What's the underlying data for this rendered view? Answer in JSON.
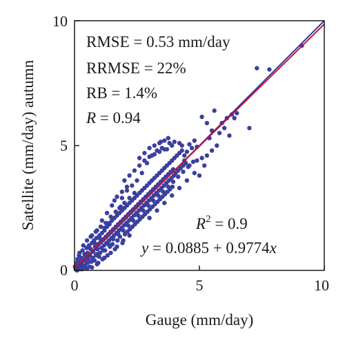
{
  "chart_data": {
    "type": "scatter",
    "xlabel": "Gauge (mm/day)",
    "ylabel": "Satellite (mm/day) autumn",
    "xlim": [
      0,
      10
    ],
    "ylim": [
      0,
      10
    ],
    "x_ticks": [
      "0",
      "5",
      "10"
    ],
    "y_ticks": [
      "0",
      "5",
      "10"
    ],
    "grid": false,
    "stats": {
      "rmse": "RMSE = 0.53 mm/day",
      "rrmse": "RRMSE = 22%",
      "rb": "RB = 1.4%",
      "r_symbol": "R",
      "r_value": " = 0.94",
      "r2_symbol": "R",
      "r2_exponent": "2",
      "r2_value": " = 0.9",
      "eq_symbol": "y",
      "eq_mid": " = 0.0885 + 0.9774",
      "eq_var": "x"
    },
    "colors": {
      "points": "#3b3f9e",
      "identity_line": "#2b3aa8",
      "fit_line": "#c8102e",
      "axis": "#1a1a1a"
    },
    "lines": [
      {
        "kind": "identity",
        "intercept": 0,
        "slope": 1
      },
      {
        "kind": "fit",
        "intercept": 0.0885,
        "slope": 0.9774
      }
    ],
    "points": [
      [
        0.02,
        0.15
      ],
      [
        0.05,
        0.05
      ],
      [
        0.08,
        0.3
      ],
      [
        0.1,
        0.12
      ],
      [
        0.12,
        0.45
      ],
      [
        0.15,
        0.2
      ],
      [
        0.18,
        0.6
      ],
      [
        0.2,
        0.05
      ],
      [
        0.22,
        0.35
      ],
      [
        0.25,
        0.15
      ],
      [
        0.28,
        0.5
      ],
      [
        0.3,
        0.25
      ],
      [
        0.32,
        0.8
      ],
      [
        0.35,
        0.1
      ],
      [
        0.38,
        0.4
      ],
      [
        0.4,
        0.65
      ],
      [
        0.42,
        0.2
      ],
      [
        0.45,
        0.55
      ],
      [
        0.48,
        0.9
      ],
      [
        0.5,
        0.3
      ],
      [
        0.52,
        0.7
      ],
      [
        0.55,
        0.45
      ],
      [
        0.58,
        1.0
      ],
      [
        0.6,
        0.15
      ],
      [
        0.62,
        0.6
      ],
      [
        0.65,
        0.85
      ],
      [
        0.68,
        0.35
      ],
      [
        0.7,
        1.1
      ],
      [
        0.72,
        0.5
      ],
      [
        0.75,
        0.75
      ],
      [
        0.78,
        1.2
      ],
      [
        0.8,
        0.4
      ],
      [
        0.82,
        0.95
      ],
      [
        0.85,
        0.6
      ],
      [
        0.88,
        1.3
      ],
      [
        0.9,
        0.25
      ],
      [
        0.92,
        0.85
      ],
      [
        0.95,
        1.05
      ],
      [
        0.98,
        0.55
      ],
      [
        1.0,
        1.4
      ],
      [
        1.02,
        0.7
      ],
      [
        1.05,
        1.15
      ],
      [
        1.08,
        0.9
      ],
      [
        1.1,
        1.5
      ],
      [
        1.12,
        0.45
      ],
      [
        1.15,
        1.25
      ],
      [
        1.18,
        1.0
      ],
      [
        1.2,
        1.6
      ],
      [
        1.22,
        0.8
      ],
      [
        1.25,
        1.35
      ],
      [
        1.28,
        1.1
      ],
      [
        1.3,
        1.75
      ],
      [
        1.32,
        0.6
      ],
      [
        1.35,
        1.45
      ],
      [
        1.38,
        1.2
      ],
      [
        1.4,
        1.85
      ],
      [
        1.42,
        0.95
      ],
      [
        1.45,
        1.55
      ],
      [
        1.48,
        1.3
      ],
      [
        1.5,
        2.0
      ],
      [
        1.52,
        1.05
      ],
      [
        1.55,
        1.65
      ],
      [
        1.58,
        1.4
      ],
      [
        1.6,
        2.1
      ],
      [
        1.62,
        0.85
      ],
      [
        1.65,
        1.75
      ],
      [
        1.68,
        1.5
      ],
      [
        1.7,
        2.2
      ],
      [
        1.72,
        1.2
      ],
      [
        1.75,
        1.85
      ],
      [
        1.78,
        1.6
      ],
      [
        1.8,
        2.3
      ],
      [
        1.82,
        1.35
      ],
      [
        1.85,
        1.95
      ],
      [
        1.88,
        1.7
      ],
      [
        1.9,
        2.4
      ],
      [
        1.92,
        1.1
      ],
      [
        1.95,
        2.05
      ],
      [
        1.98,
        1.8
      ],
      [
        2.0,
        2.5
      ],
      [
        2.02,
        1.45
      ],
      [
        2.05,
        2.15
      ],
      [
        2.08,
        1.9
      ],
      [
        2.1,
        2.6
      ],
      [
        2.12,
        1.55
      ],
      [
        2.15,
        2.25
      ],
      [
        2.18,
        2.0
      ],
      [
        2.2,
        2.7
      ],
      [
        2.22,
        1.65
      ],
      [
        2.25,
        2.35
      ],
      [
        2.28,
        2.1
      ],
      [
        2.3,
        2.8
      ],
      [
        2.32,
        1.75
      ],
      [
        2.35,
        2.45
      ],
      [
        2.38,
        2.2
      ],
      [
        2.4,
        2.9
      ],
      [
        2.42,
        1.85
      ],
      [
        2.45,
        2.55
      ],
      [
        2.48,
        2.3
      ],
      [
        2.5,
        3.0
      ],
      [
        2.52,
        1.95
      ],
      [
        2.55,
        2.65
      ],
      [
        2.58,
        2.4
      ],
      [
        2.6,
        3.1
      ],
      [
        2.62,
        2.05
      ],
      [
        2.65,
        2.75
      ],
      [
        2.68,
        2.5
      ],
      [
        2.7,
        3.2
      ],
      [
        2.72,
        2.15
      ],
      [
        2.75,
        2.85
      ],
      [
        2.78,
        2.6
      ],
      [
        2.8,
        3.3
      ],
      [
        2.82,
        2.25
      ],
      [
        2.85,
        2.95
      ],
      [
        2.88,
        2.7
      ],
      [
        2.9,
        3.4
      ],
      [
        2.92,
        2.35
      ],
      [
        2.95,
        3.05
      ],
      [
        2.98,
        2.8
      ],
      [
        3.0,
        3.5
      ],
      [
        3.02,
        2.45
      ],
      [
        3.05,
        3.15
      ],
      [
        3.08,
        2.9
      ],
      [
        3.1,
        3.6
      ],
      [
        3.12,
        2.55
      ],
      [
        3.15,
        3.25
      ],
      [
        3.18,
        3.0
      ],
      [
        3.2,
        3.7
      ],
      [
        3.22,
        2.65
      ],
      [
        3.25,
        3.35
      ],
      [
        3.28,
        3.1
      ],
      [
        3.3,
        3.8
      ],
      [
        3.32,
        2.75
      ],
      [
        3.35,
        3.45
      ],
      [
        3.38,
        3.2
      ],
      [
        3.4,
        3.9
      ],
      [
        3.42,
        2.85
      ],
      [
        3.45,
        3.55
      ],
      [
        3.48,
        3.3
      ],
      [
        3.5,
        4.0
      ],
      [
        3.52,
        2.95
      ],
      [
        3.55,
        3.65
      ],
      [
        3.58,
        3.4
      ],
      [
        3.6,
        4.1
      ],
      [
        3.62,
        3.05
      ],
      [
        3.65,
        3.75
      ],
      [
        3.68,
        3.5
      ],
      [
        3.7,
        4.2
      ],
      [
        3.72,
        3.15
      ],
      [
        3.75,
        3.85
      ],
      [
        3.78,
        3.6
      ],
      [
        3.8,
        4.3
      ],
      [
        3.82,
        3.25
      ],
      [
        3.85,
        3.95
      ],
      [
        3.88,
        3.7
      ],
      [
        3.9,
        4.4
      ],
      [
        3.92,
        3.35
      ],
      [
        3.95,
        4.05
      ],
      [
        3.98,
        3.8
      ],
      [
        4.0,
        4.5
      ],
      [
        4.05,
        3.9
      ],
      [
        4.1,
        4.6
      ],
      [
        4.15,
        4.0
      ],
      [
        4.2,
        4.7
      ],
      [
        4.25,
        4.1
      ],
      [
        4.3,
        4.8
      ],
      [
        4.35,
        4.2
      ],
      [
        4.4,
        4.6
      ],
      [
        4.45,
        4.3
      ],
      [
        4.5,
        4.75
      ],
      [
        2.6,
        4.5
      ],
      [
        2.8,
        4.7
      ],
      [
        3.0,
        4.9
      ],
      [
        3.2,
        5.0
      ],
      [
        3.4,
        5.1
      ],
      [
        3.6,
        5.2
      ],
      [
        3.8,
        5.1
      ],
      [
        3.3,
        4.8
      ],
      [
        3.5,
        4.9
      ],
      [
        2.9,
        4.3
      ],
      [
        3.1,
        4.6
      ],
      [
        3.7,
        4.85
      ],
      [
        4.0,
        5.15
      ],
      [
        3.9,
        5.0
      ],
      [
        4.2,
        5.1
      ],
      [
        2.7,
        3.9
      ],
      [
        2.5,
        3.6
      ],
      [
        2.3,
        3.4
      ],
      [
        2.1,
        3.2
      ],
      [
        1.9,
        2.9
      ],
      [
        1.5,
        2.6
      ],
      [
        1.6,
        2.8
      ],
      [
        1.3,
        2.3
      ],
      [
        1.1,
        2.0
      ],
      [
        0.9,
        1.6
      ],
      [
        0.7,
        1.4
      ],
      [
        3.0,
        2.1
      ],
      [
        3.3,
        2.4
      ],
      [
        3.6,
        2.7
      ],
      [
        3.9,
        3.0
      ],
      [
        4.2,
        3.3
      ],
      [
        4.5,
        3.6
      ],
      [
        4.8,
        3.9
      ],
      [
        4.6,
        4.2
      ],
      [
        4.9,
        4.4
      ],
      [
        5.1,
        4.5
      ],
      [
        5.3,
        4.6
      ],
      [
        5.5,
        4.8
      ],
      [
        5.7,
        5.0
      ],
      [
        5.0,
        3.8
      ],
      [
        5.2,
        4.2
      ],
      [
        4.7,
        4.9
      ],
      [
        4.4,
        4.4
      ],
      [
        4.9,
        4.95
      ],
      [
        5.4,
        5.3
      ],
      [
        5.8,
        5.5
      ],
      [
        6.0,
        5.7
      ],
      [
        6.2,
        5.4
      ],
      [
        6.4,
        6.1
      ],
      [
        6.5,
        6.3
      ],
      [
        5.1,
        6.15
      ],
      [
        5.3,
        5.9
      ],
      [
        5.5,
        5.6
      ],
      [
        5.6,
        6.4
      ],
      [
        5.9,
        5.9
      ],
      [
        6.1,
        6.1
      ],
      [
        6.3,
        6.25
      ],
      [
        7.0,
        5.7
      ],
      [
        7.3,
        8.1
      ],
      [
        7.8,
        8.05
      ],
      [
        9.1,
        9.0
      ],
      [
        4.3,
        5.0
      ],
      [
        4.6,
        5.05
      ],
      [
        4.8,
        5.2
      ],
      [
        3.45,
        5.15
      ],
      [
        3.75,
        5.3
      ],
      [
        2.4,
        3.1
      ],
      [
        2.2,
        2.9
      ],
      [
        2.0,
        2.7
      ],
      [
        1.8,
        2.5
      ],
      [
        1.4,
        1.9
      ],
      [
        1.2,
        1.7
      ],
      [
        1.0,
        1.3
      ],
      [
        0.8,
        1.1
      ],
      [
        0.6,
        0.9
      ],
      [
        0.4,
        0.5
      ],
      [
        0.3,
        0.15
      ],
      [
        0.6,
        0.35
      ],
      [
        0.9,
        0.65
      ],
      [
        1.15,
        0.8
      ],
      [
        1.35,
        1.05
      ],
      [
        1.55,
        1.25
      ],
      [
        1.75,
        1.45
      ],
      [
        1.95,
        1.6
      ],
      [
        2.15,
        1.8
      ],
      [
        2.35,
        2.0
      ],
      [
        2.55,
        2.2
      ],
      [
        2.75,
        2.4
      ],
      [
        2.95,
        2.6
      ],
      [
        3.15,
        2.8
      ],
      [
        3.35,
        3.0
      ],
      [
        3.55,
        3.15
      ],
      [
        3.75,
        3.35
      ],
      [
        3.95,
        3.55
      ],
      [
        4.15,
        3.75
      ],
      [
        4.35,
        3.95
      ],
      [
        4.55,
        4.15
      ],
      [
        4.75,
        4.35
      ],
      [
        2.0,
        3.6
      ],
      [
        2.2,
        3.8
      ],
      [
        2.4,
        4.0
      ],
      [
        2.6,
        4.2
      ],
      [
        2.8,
        4.4
      ],
      [
        3.0,
        4.55
      ],
      [
        3.2,
        4.65
      ],
      [
        3.4,
        4.75
      ],
      [
        3.6,
        4.85
      ],
      [
        1.7,
        2.95
      ],
      [
        1.9,
        3.15
      ],
      [
        2.1,
        3.35
      ],
      [
        0.2,
        0.7
      ],
      [
        0.35,
        1.0
      ],
      [
        0.5,
        1.2
      ],
      [
        0.65,
        1.35
      ],
      [
        0.85,
        1.55
      ],
      [
        1.05,
        1.75
      ],
      [
        1.25,
        1.9
      ],
      [
        1.45,
        2.15
      ],
      [
        1.65,
        2.35
      ],
      [
        1.85,
        2.55
      ],
      [
        0.1,
        0.0
      ],
      [
        0.3,
        0.05
      ],
      [
        0.5,
        0.08
      ],
      [
        0.7,
        0.12
      ],
      [
        0.95,
        0.3
      ],
      [
        1.2,
        0.5
      ],
      [
        1.45,
        0.7
      ],
      [
        1.7,
        0.95
      ],
      [
        1.95,
        1.2
      ],
      [
        2.2,
        1.4
      ]
    ]
  }
}
